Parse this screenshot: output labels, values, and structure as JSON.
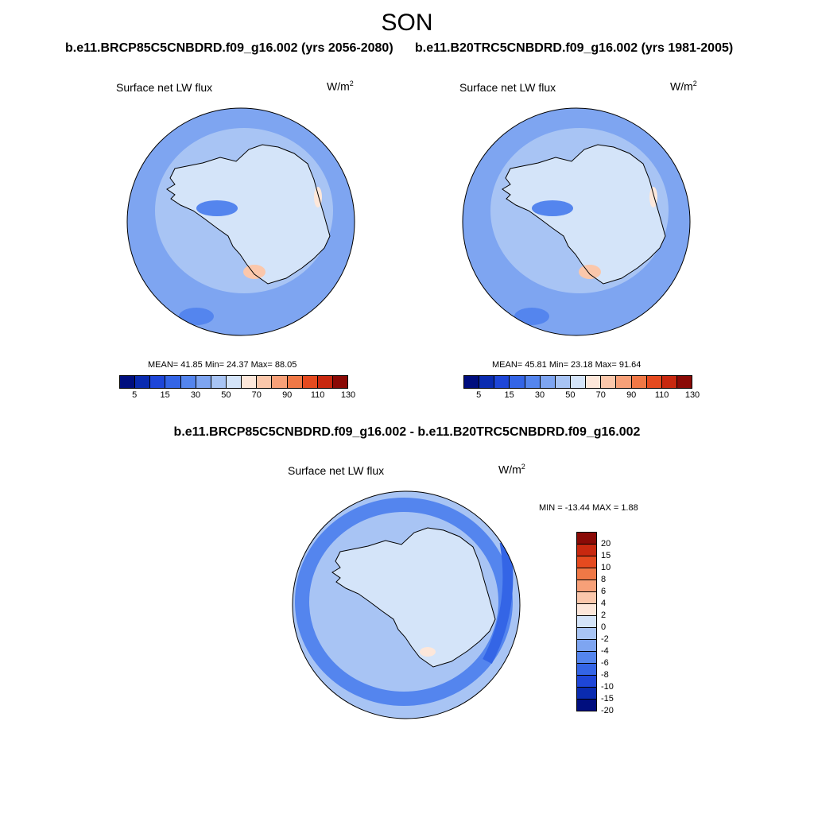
{
  "season": "SON",
  "colors": {
    "scale": [
      "#000e7e",
      "#0a2bb0",
      "#1e46d8",
      "#3465e6",
      "#5485ee",
      "#7ea5f1",
      "#a8c4f4",
      "#d4e4f9",
      "#fde7da",
      "#fbc7ab",
      "#f7a078",
      "#f07846",
      "#e54a1f",
      "#c8280f",
      "#8a0a06"
    ],
    "coast": "#000000",
    "frame": "#000000"
  },
  "panels": [
    {
      "case_title": "b.e11.BRCP85C5CNBDRD.f09_g16.002 (yrs 2056-2080)",
      "variable": "Surface net LW flux",
      "units_base": "W/m",
      "units_exp": "2",
      "stats": "MEAN=  41.85  Min=  24.37  Max=  88.05",
      "colorbar_ticks": [
        "5",
        "15",
        "30",
        "50",
        "70",
        "90",
        "110",
        "130"
      ]
    },
    {
      "case_title": "b.e11.B20TRC5CNBDRD.f09_g16.002 (yrs 1981-2005)",
      "variable": "Surface net LW flux",
      "units_base": "W/m",
      "units_exp": "2",
      "stats": "MEAN=  45.81  Min=  23.18  Max=  91.64",
      "colorbar_ticks": [
        "5",
        "15",
        "30",
        "50",
        "70",
        "90",
        "110",
        "130"
      ]
    }
  ],
  "difference": {
    "title": "b.e11.BRCP85C5CNBDRD.f09_g16.002 - b.e11.B20TRC5CNBDRD.f09_g16.002",
    "variable": "Surface net LW flux",
    "units_base": "W/m",
    "units_exp": "2",
    "stats": "MIN = -13.44 MAX =   1.88",
    "colorbar_ticks": [
      "20",
      "15",
      "10",
      "8",
      "6",
      "4",
      "2",
      "0",
      "-2",
      "-4",
      "-6",
      "-8",
      "-10",
      "-15",
      "-20"
    ]
  }
}
